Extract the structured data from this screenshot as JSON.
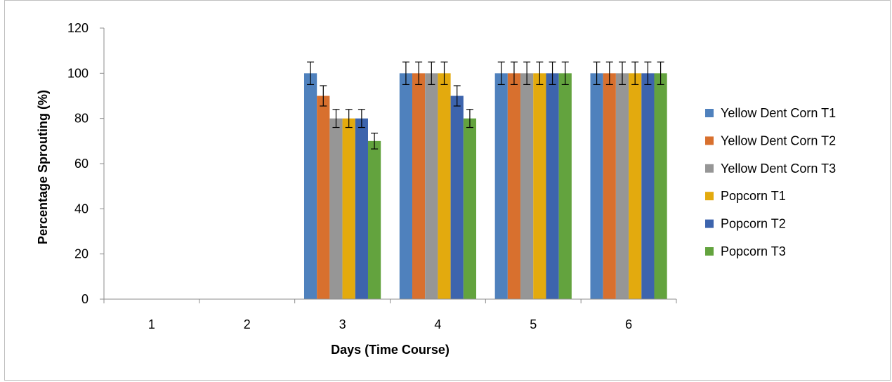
{
  "chart_data": {
    "type": "bar",
    "title": "",
    "xlabel": "Days (Time Course)",
    "ylabel": "Percentage Sprouting (%)",
    "ylim": [
      0,
      120
    ],
    "yticks": [
      "0",
      "20",
      "40",
      "60",
      "80",
      "100",
      "120"
    ],
    "categories": [
      "1",
      "2",
      "3",
      "4",
      "5",
      "6"
    ],
    "grid": false,
    "legend_position": "right",
    "error_bars": true,
    "series": [
      {
        "name": "Yellow Dent Corn T1",
        "color": "#4f81bd",
        "values": [
          0,
          0,
          100,
          100,
          100,
          100
        ],
        "errors": [
          0,
          0,
          5,
          5,
          5,
          5
        ]
      },
      {
        "name": "Yellow Dent Corn T2",
        "color": "#d8702e",
        "values": [
          0,
          0,
          90,
          100,
          100,
          100
        ],
        "errors": [
          0,
          0,
          4.5,
          5,
          5,
          5
        ]
      },
      {
        "name": "Yellow Dent Corn T3",
        "color": "#969696",
        "values": [
          0,
          0,
          80,
          100,
          100,
          100
        ],
        "errors": [
          0,
          0,
          4,
          5,
          5,
          5
        ]
      },
      {
        "name": "Popcorn T1",
        "color": "#e3aa0e",
        "values": [
          0,
          0,
          80,
          100,
          100,
          100
        ],
        "errors": [
          0,
          0,
          4,
          5,
          5,
          5
        ]
      },
      {
        "name": "Popcorn T2",
        "color": "#3d64ad",
        "values": [
          0,
          0,
          80,
          90,
          100,
          100
        ],
        "errors": [
          0,
          0,
          4,
          4.5,
          5,
          5
        ]
      },
      {
        "name": "Popcorn T3",
        "color": "#63a33e",
        "values": [
          0,
          0,
          70,
          80,
          100,
          100
        ],
        "errors": [
          0,
          0,
          3.5,
          4,
          5,
          5
        ]
      }
    ]
  }
}
